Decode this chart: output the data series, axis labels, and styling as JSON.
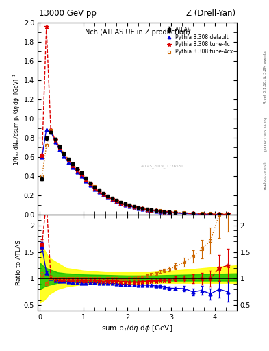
{
  "title_top_left": "13000 GeV pp",
  "title_top_right": "Z (Drell-Yan)",
  "plot_title": "Nch (ATLAS UE in Z production)",
  "xlabel": "sum p$_T$/d$\\eta$ d$\\phi$ [GeV]",
  "ylabel_main": "1/N$_{ev}$ dN$_{ev}$/dsum p$_T$/d$\\eta$ d$\\phi$  [GeV]$^{-1}$",
  "ylabel_ratio": "Ratio to ATLAS",
  "right_label_top": "Rivet 3.1.10, ≥ 3.2M events",
  "right_label_mid": "[arXiv:1306.3436]",
  "right_label_bot": "mcplots.cern.ch",
  "watermark": "ATLAS_2019_I1736531",
  "xlim": [
    -0.05,
    4.5
  ],
  "ylim_main": [
    0.0,
    2.0
  ],
  "ylim_ratio": [
    0.4,
    2.2
  ],
  "atlas_x": [
    0.05,
    0.15,
    0.25,
    0.35,
    0.45,
    0.55,
    0.65,
    0.75,
    0.85,
    0.95,
    1.05,
    1.15,
    1.25,
    1.35,
    1.45,
    1.55,
    1.65,
    1.75,
    1.85,
    1.95,
    2.05,
    2.15,
    2.25,
    2.35,
    2.45,
    2.55,
    2.65,
    2.75,
    2.85,
    2.95,
    3.1,
    3.3,
    3.5,
    3.7,
    3.9,
    4.1,
    4.3
  ],
  "atlas_y": [
    0.375,
    0.8,
    0.86,
    0.79,
    0.71,
    0.64,
    0.58,
    0.53,
    0.48,
    0.435,
    0.38,
    0.33,
    0.29,
    0.255,
    0.225,
    0.195,
    0.17,
    0.15,
    0.132,
    0.115,
    0.1,
    0.087,
    0.076,
    0.066,
    0.057,
    0.049,
    0.043,
    0.037,
    0.032,
    0.028,
    0.022,
    0.016,
    0.012,
    0.009,
    0.007,
    0.005,
    0.004
  ],
  "atlas_yerr": [
    0.02,
    0.018,
    0.016,
    0.014,
    0.012,
    0.01,
    0.009,
    0.008,
    0.007,
    0.006,
    0.005,
    0.004,
    0.004,
    0.003,
    0.003,
    0.003,
    0.002,
    0.002,
    0.002,
    0.002,
    0.002,
    0.002,
    0.002,
    0.001,
    0.001,
    0.001,
    0.001,
    0.001,
    0.001,
    0.001,
    0.001,
    0.001,
    0.001,
    0.001,
    0.001,
    0.001,
    0.001
  ],
  "py_default_x": [
    0.05,
    0.15,
    0.25,
    0.35,
    0.45,
    0.55,
    0.65,
    0.75,
    0.85,
    0.95,
    1.05,
    1.15,
    1.25,
    1.35,
    1.45,
    1.55,
    1.65,
    1.75,
    1.85,
    1.95,
    2.05,
    2.15,
    2.25,
    2.35,
    2.45,
    2.55,
    2.65,
    2.75,
    2.85,
    2.95,
    3.1,
    3.3,
    3.5,
    3.7,
    3.9,
    4.1,
    4.3
  ],
  "py_default_y": [
    0.6,
    0.89,
    0.87,
    0.76,
    0.68,
    0.61,
    0.545,
    0.495,
    0.445,
    0.4,
    0.35,
    0.305,
    0.268,
    0.235,
    0.205,
    0.178,
    0.155,
    0.136,
    0.118,
    0.103,
    0.089,
    0.077,
    0.067,
    0.058,
    0.05,
    0.043,
    0.037,
    0.032,
    0.027,
    0.023,
    0.018,
    0.013,
    0.009,
    0.007,
    0.005,
    0.004,
    0.003
  ],
  "py_4c_x": [
    0.05,
    0.15,
    0.25,
    0.35,
    0.45,
    0.55,
    0.65,
    0.75,
    0.85,
    0.95,
    1.05,
    1.15,
    1.25,
    1.35,
    1.45,
    1.55,
    1.65,
    1.75,
    1.85,
    1.95,
    2.05,
    2.15,
    2.25,
    2.35,
    2.45,
    2.55,
    2.65,
    2.75,
    2.85,
    2.95,
    3.1,
    3.3,
    3.5,
    3.7,
    3.9,
    4.1,
    4.3
  ],
  "py_4c_y": [
    0.62,
    1.96,
    0.89,
    0.78,
    0.705,
    0.635,
    0.57,
    0.518,
    0.466,
    0.42,
    0.366,
    0.32,
    0.28,
    0.245,
    0.215,
    0.187,
    0.163,
    0.143,
    0.124,
    0.108,
    0.093,
    0.081,
    0.071,
    0.062,
    0.054,
    0.047,
    0.041,
    0.036,
    0.031,
    0.027,
    0.022,
    0.016,
    0.012,
    0.009,
    0.007,
    0.006,
    0.005
  ],
  "py_4cx_x": [
    0.05,
    0.15,
    0.25,
    0.35,
    0.45,
    0.55,
    0.65,
    0.75,
    0.85,
    0.95,
    1.05,
    1.15,
    1.25,
    1.35,
    1.45,
    1.55,
    1.65,
    1.75,
    1.85,
    1.95,
    2.05,
    2.15,
    2.25,
    2.35,
    2.45,
    2.55,
    2.65,
    2.75,
    2.85,
    2.95,
    3.1,
    3.3,
    3.5,
    3.7,
    3.9,
    4.1,
    4.3
  ],
  "py_4cx_y": [
    0.4,
    0.72,
    0.88,
    0.79,
    0.715,
    0.645,
    0.58,
    0.53,
    0.48,
    0.435,
    0.38,
    0.332,
    0.292,
    0.256,
    0.224,
    0.195,
    0.17,
    0.15,
    0.131,
    0.114,
    0.1,
    0.088,
    0.077,
    0.068,
    0.06,
    0.053,
    0.047,
    0.042,
    0.037,
    0.033,
    0.027,
    0.021,
    0.017,
    0.014,
    0.012,
    0.011,
    0.01
  ],
  "color_atlas": "#000000",
  "color_default": "#0000dd",
  "color_4c": "#dd0000",
  "color_4cx": "#cc6600",
  "background_color": "#ffffff",
  "yellow_color": "#ffff00",
  "green_color": "#00bb00",
  "ratio_bands_x": [
    0.0,
    0.1,
    0.2,
    0.4,
    0.6,
    1.0,
    1.5,
    2.0,
    2.5,
    3.0,
    3.5,
    4.0,
    4.5
  ],
  "ratio_yellow_lo": [
    0.55,
    0.6,
    0.7,
    0.8,
    0.85,
    0.9,
    0.9,
    0.9,
    0.92,
    0.92,
    0.92,
    0.92,
    0.92
  ],
  "ratio_yellow_hi": [
    1.65,
    1.55,
    1.4,
    1.3,
    1.2,
    1.15,
    1.12,
    1.12,
    1.12,
    1.15,
    1.18,
    1.22,
    1.25
  ],
  "ratio_green_lo": [
    0.8,
    0.85,
    0.88,
    0.92,
    0.94,
    0.95,
    0.95,
    0.95,
    0.96,
    0.96,
    0.96,
    0.96,
    0.96
  ],
  "ratio_green_hi": [
    1.3,
    1.22,
    1.18,
    1.12,
    1.1,
    1.08,
    1.07,
    1.06,
    1.06,
    1.07,
    1.08,
    1.09,
    1.1
  ]
}
